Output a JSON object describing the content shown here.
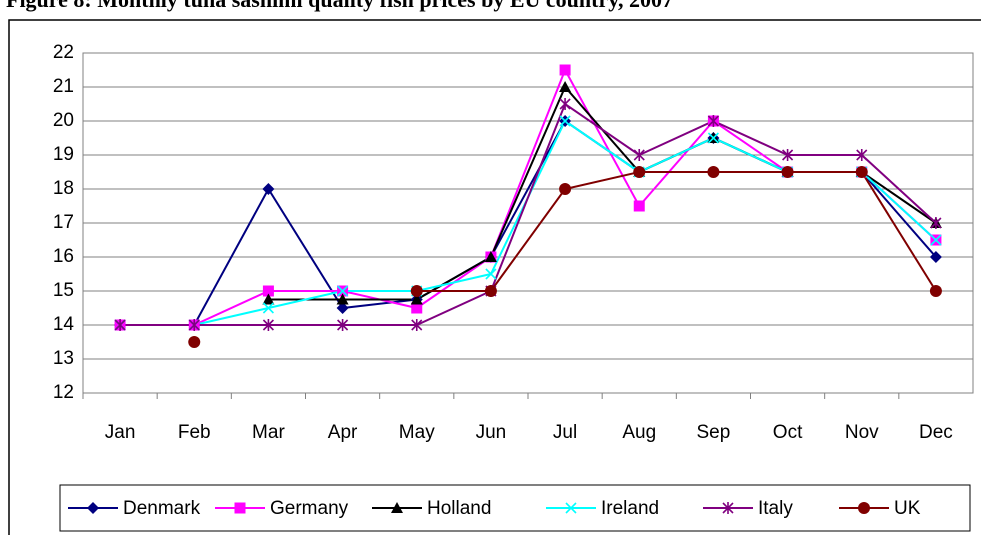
{
  "chart_data": {
    "type": "line",
    "title": "Figure 8: Monthly tuna sashimi quality fish prices by EU country, 2007",
    "categories": [
      "Jan",
      "Feb",
      "Mar",
      "Apr",
      "May",
      "Jun",
      "Jul",
      "Aug",
      "Sep",
      "Oct",
      "Nov",
      "Dec"
    ],
    "series": [
      {
        "name": "Denmark",
        "color": "#000080",
        "marker": "diamond",
        "values": [
          14,
          14,
          18,
          14.5,
          14.75,
          16,
          20,
          18.5,
          19.5,
          18.5,
          18.5,
          16
        ]
      },
      {
        "name": "Germany",
        "color": "#ff00ff",
        "marker": "square",
        "values": [
          14,
          14,
          15,
          15,
          14.5,
          16,
          21.5,
          17.5,
          20,
          18.5,
          18.5,
          16.5
        ]
      },
      {
        "name": "Holland",
        "color": "#000000",
        "marker": "triangle",
        "values": [
          null,
          null,
          14.75,
          14.75,
          14.75,
          16,
          21,
          18.5,
          19.5,
          18.5,
          18.5,
          17
        ]
      },
      {
        "name": "Ireland",
        "color": "#00ffff",
        "marker": "x",
        "values": [
          14,
          14,
          14.5,
          15,
          15,
          15.5,
          20,
          18.5,
          19.5,
          18.5,
          18.5,
          16.5
        ]
      },
      {
        "name": "Italy",
        "color": "#800080",
        "marker": "star",
        "values": [
          14,
          14,
          14,
          14,
          14,
          15,
          20.5,
          19,
          20,
          19,
          19,
          17
        ]
      },
      {
        "name": "UK",
        "color": "#800000",
        "marker": "circle",
        "values": [
          null,
          13.5,
          null,
          null,
          15,
          15,
          18,
          18.5,
          18.5,
          18.5,
          18.5,
          15
        ]
      }
    ],
    "ylim": [
      12,
      22
    ],
    "yticks": [
      12,
      13,
      14,
      15,
      16,
      17,
      18,
      19,
      20,
      21,
      22
    ],
    "grid": true,
    "legend": "bottom"
  }
}
